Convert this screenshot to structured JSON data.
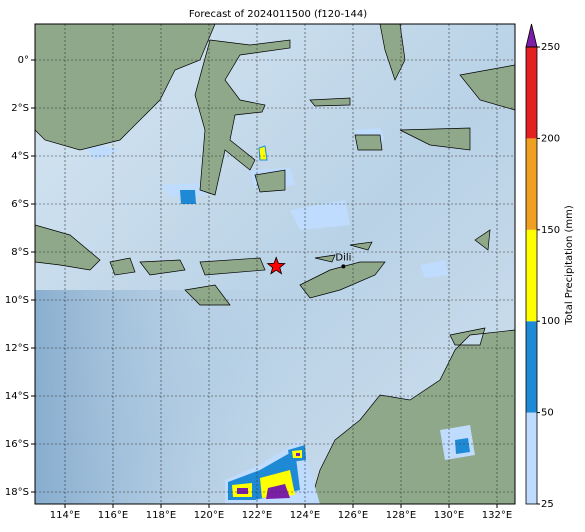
{
  "map": {
    "title": "Forecast of 2024011500 (f120-144)",
    "lonlim": [
      112.75,
      132.75
    ],
    "latlim": [
      -18.5,
      1.5
    ],
    "lonticks": [
      {
        "value": 114,
        "label": "114°E"
      },
      {
        "value": 116,
        "label": "116°E"
      },
      {
        "value": 118,
        "label": "118°E"
      },
      {
        "value": 120,
        "label": "120°E"
      },
      {
        "value": 122,
        "label": "122°E"
      },
      {
        "value": 124,
        "label": "124°E"
      },
      {
        "value": 126,
        "label": "126°E"
      },
      {
        "value": 128,
        "label": "128°E"
      },
      {
        "value": 130,
        "label": "130°E"
      },
      {
        "value": 132,
        "label": "132°E"
      }
    ],
    "latticks": [
      {
        "value": 0,
        "label": "0°"
      },
      {
        "value": -2,
        "label": "2°S"
      },
      {
        "value": -4,
        "label": "4°S"
      },
      {
        "value": -6,
        "label": "6°S"
      },
      {
        "value": -8,
        "label": "8°S"
      },
      {
        "value": -10,
        "label": "10°S"
      },
      {
        "value": -12,
        "label": "12°S"
      },
      {
        "value": -14,
        "label": "14°S"
      },
      {
        "value": -16,
        "label": "16°S"
      },
      {
        "value": -18,
        "label": "18°S"
      }
    ],
    "grid": true,
    "places": [
      {
        "name": "Dili",
        "lon": 125.6,
        "lat": -8.6
      }
    ],
    "marker": {
      "lon": 122.8,
      "lat": -8.6,
      "color": "#ff0000"
    }
  },
  "colorbar": {
    "label": "Total Precipitation (mm)",
    "ticks": [
      25,
      50,
      100,
      150,
      200,
      250
    ],
    "colors": [
      "#bfdcff",
      "#1e8ad6",
      "#ffff00",
      "#f0a020",
      "#e42020"
    ],
    "extend_color": "#7b1fa6"
  }
}
